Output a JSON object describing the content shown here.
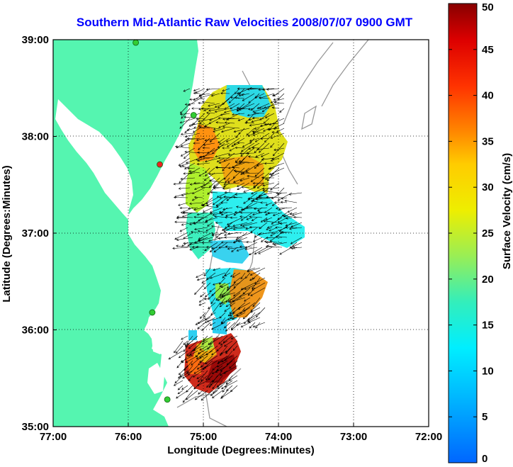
{
  "title": "Southern Mid-Atlantic Raw Velocities 2008/07/07 0900 GMT",
  "axes": {
    "xlabel": "Longitude (Degrees:Minutes)",
    "ylabel": "Latitude (Degrees:Minutes)",
    "x_ticks": [
      "77:00",
      "76:00",
      "75:00",
      "74:00",
      "73:00",
      "72:00"
    ],
    "y_ticks": [
      "39:00",
      "38:00",
      "37:00",
      "36:00",
      "35:00"
    ],
    "x_range": [
      -77,
      -72
    ],
    "y_range": [
      35,
      39
    ]
  },
  "colorbar": {
    "label": "Surface Velocity (cm/s)",
    "ticks": [
      "50",
      "45",
      "40",
      "35",
      "30",
      "25",
      "20",
      "15",
      "10",
      "5",
      "0"
    ],
    "range": [
      0,
      50
    ]
  },
  "colors": {
    "land": "#55f5b0",
    "water": "#ffffff",
    "title": "#0000ff",
    "station_active": "#33cc33",
    "station_inactive": "#ee2222"
  },
  "legend": {},
  "stations": [
    {
      "lon": -75.9,
      "lat": 38.97,
      "status": "active"
    },
    {
      "lon": -75.13,
      "lat": 38.22,
      "status": "active"
    },
    {
      "lon": -75.58,
      "lat": 37.71,
      "status": "inactive"
    },
    {
      "lon": -75.68,
      "lat": 36.18,
      "status": "active"
    },
    {
      "lon": -75.48,
      "lat": 35.28,
      "status": "active"
    }
  ]
}
